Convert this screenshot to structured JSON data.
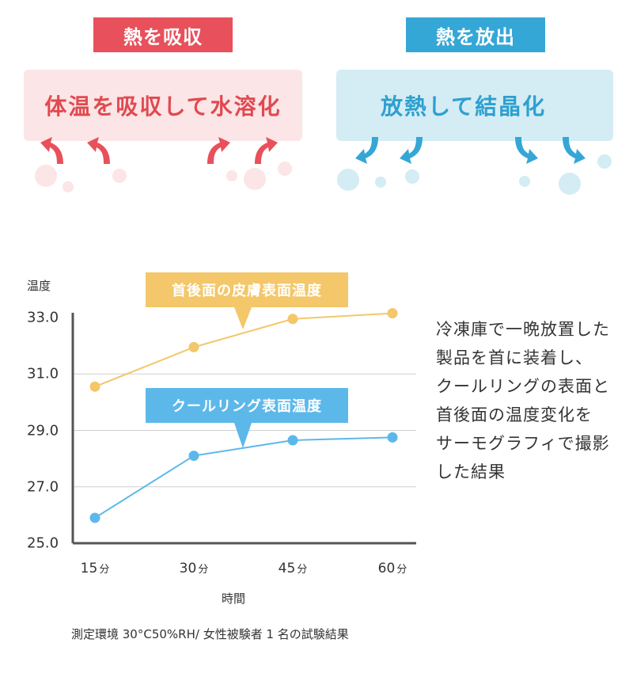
{
  "top": {
    "absorb_tag": "熱を吸収",
    "absorb_text": "体温を吸収して水溶化",
    "release_tag": "熱を放出",
    "release_text": "放熱して結晶化",
    "colors": {
      "absorb": "#e8505b",
      "release": "#35a7d6"
    }
  },
  "side_text": {
    "lines": [
      "冷凍庫で一晩放置した",
      "製品を首に装着し、",
      "クールリングの表面と",
      "首後面の温度変化を",
      "サーモグラフィで撮影",
      "した結果"
    ]
  },
  "footnote": "測定環境 30°C50%RH/ 女性被験者 1 名の試験結果",
  "chart_data": {
    "type": "line",
    "ylabel": "温度",
    "xlabel": "時間",
    "categories": [
      {
        "num": "15",
        "unit": "分"
      },
      {
        "num": "30",
        "unit": "分"
      },
      {
        "num": "45",
        "unit": "分"
      },
      {
        "num": "60",
        "unit": "分"
      }
    ],
    "yticks": [
      "33.0",
      "31.0",
      "29.0",
      "27.0",
      "25.0"
    ],
    "ylim": [
      25,
      33
    ],
    "grid": true,
    "series": [
      {
        "name": "首後面の皮膚表面温度",
        "values": [
          30.55,
          31.95,
          32.95,
          33.15
        ],
        "color": "#f3c76a"
      },
      {
        "name": "クールリング表面温度",
        "values": [
          25.9,
          28.1,
          28.65,
          28.75
        ],
        "color": "#5db8ea"
      }
    ]
  }
}
